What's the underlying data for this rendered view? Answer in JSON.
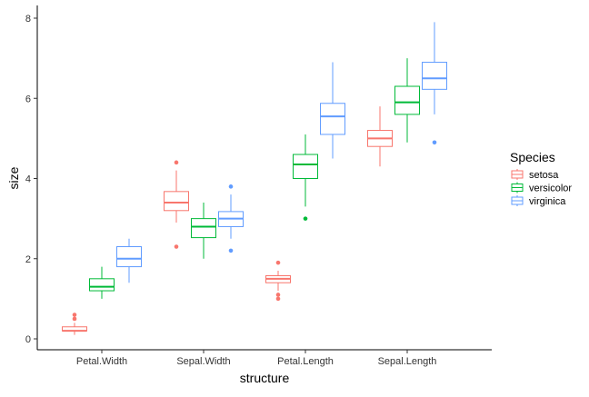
{
  "chart_data": {
    "type": "boxplot",
    "xlabel": "structure",
    "ylabel": "size",
    "ylim": [
      0,
      8
    ],
    "yticks": [
      0,
      2,
      4,
      6,
      8
    ],
    "grid": false,
    "legend": {
      "title": "Species",
      "position": "right"
    },
    "categories": [
      "Petal.Width",
      "Sepal.Width",
      "Petal.Length",
      "Sepal.Length"
    ],
    "series": [
      {
        "name": "setosa",
        "color": "#F8766D",
        "boxes": [
          {
            "lower": 0.1,
            "q1": 0.2,
            "median": 0.2,
            "q3": 0.3,
            "upper": 0.4,
            "outliers": [
              0.5,
              0.6
            ]
          },
          {
            "lower": 2.9,
            "q1": 3.2,
            "median": 3.4,
            "q3": 3.675,
            "upper": 4.2,
            "outliers": [
              2.3,
              4.4
            ]
          },
          {
            "lower": 1.2,
            "q1": 1.4,
            "median": 1.5,
            "q3": 1.575,
            "upper": 1.7,
            "outliers": [
              1.0,
              1.1,
              1.9
            ]
          },
          {
            "lower": 4.3,
            "q1": 4.8,
            "median": 5.0,
            "q3": 5.2,
            "upper": 5.8,
            "outliers": []
          }
        ]
      },
      {
        "name": "versicolor",
        "color": "#00BA38",
        "boxes": [
          {
            "lower": 1.0,
            "q1": 1.2,
            "median": 1.3,
            "q3": 1.5,
            "upper": 1.8,
            "outliers": []
          },
          {
            "lower": 2.0,
            "q1": 2.525,
            "median": 2.8,
            "q3": 3.0,
            "upper": 3.4,
            "outliers": []
          },
          {
            "lower": 3.3,
            "q1": 4.0,
            "median": 4.35,
            "q3": 4.6,
            "upper": 5.1,
            "outliers": [
              3.0
            ]
          },
          {
            "lower": 4.9,
            "q1": 5.6,
            "median": 5.9,
            "q3": 6.3,
            "upper": 7.0,
            "outliers": []
          }
        ]
      },
      {
        "name": "virginica",
        "color": "#619CFF",
        "boxes": [
          {
            "lower": 1.4,
            "q1": 1.8,
            "median": 2.0,
            "q3": 2.3,
            "upper": 2.5,
            "outliers": []
          },
          {
            "lower": 2.5,
            "q1": 2.8,
            "median": 3.0,
            "q3": 3.175,
            "upper": 3.6,
            "outliers": [
              2.2,
              3.8
            ]
          },
          {
            "lower": 4.5,
            "q1": 5.1,
            "median": 5.55,
            "q3": 5.875,
            "upper": 6.9,
            "outliers": []
          },
          {
            "lower": 5.6,
            "q1": 6.225,
            "median": 6.5,
            "q3": 6.9,
            "upper": 7.9,
            "outliers": [
              4.9
            ]
          }
        ]
      }
    ]
  }
}
